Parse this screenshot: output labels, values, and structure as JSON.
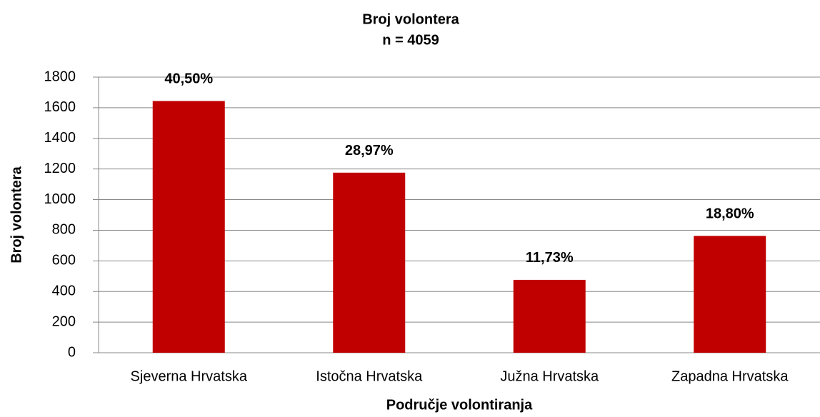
{
  "chart_data": {
    "type": "bar",
    "title": "Broj volontera",
    "subtitle": "n = 4059",
    "x_label": "Područje volontiranja",
    "y_label": "Broj volontera",
    "categories": [
      "Sjeverna Hrvatska",
      "Istočna Hrvatska",
      "Južna Hrvatska",
      "Zapadna Hrvatska"
    ],
    "values": [
      1644,
      1176,
      476,
      763
    ],
    "value_labels": [
      "40,50%",
      "28,97%",
      "11,73%",
      "18,80%"
    ],
    "color": "#c00000",
    "ylim": [
      0,
      1800
    ],
    "yticks": [
      0,
      200,
      400,
      600,
      800,
      1000,
      1200,
      1400,
      1600,
      1800
    ],
    "grid": true
  }
}
